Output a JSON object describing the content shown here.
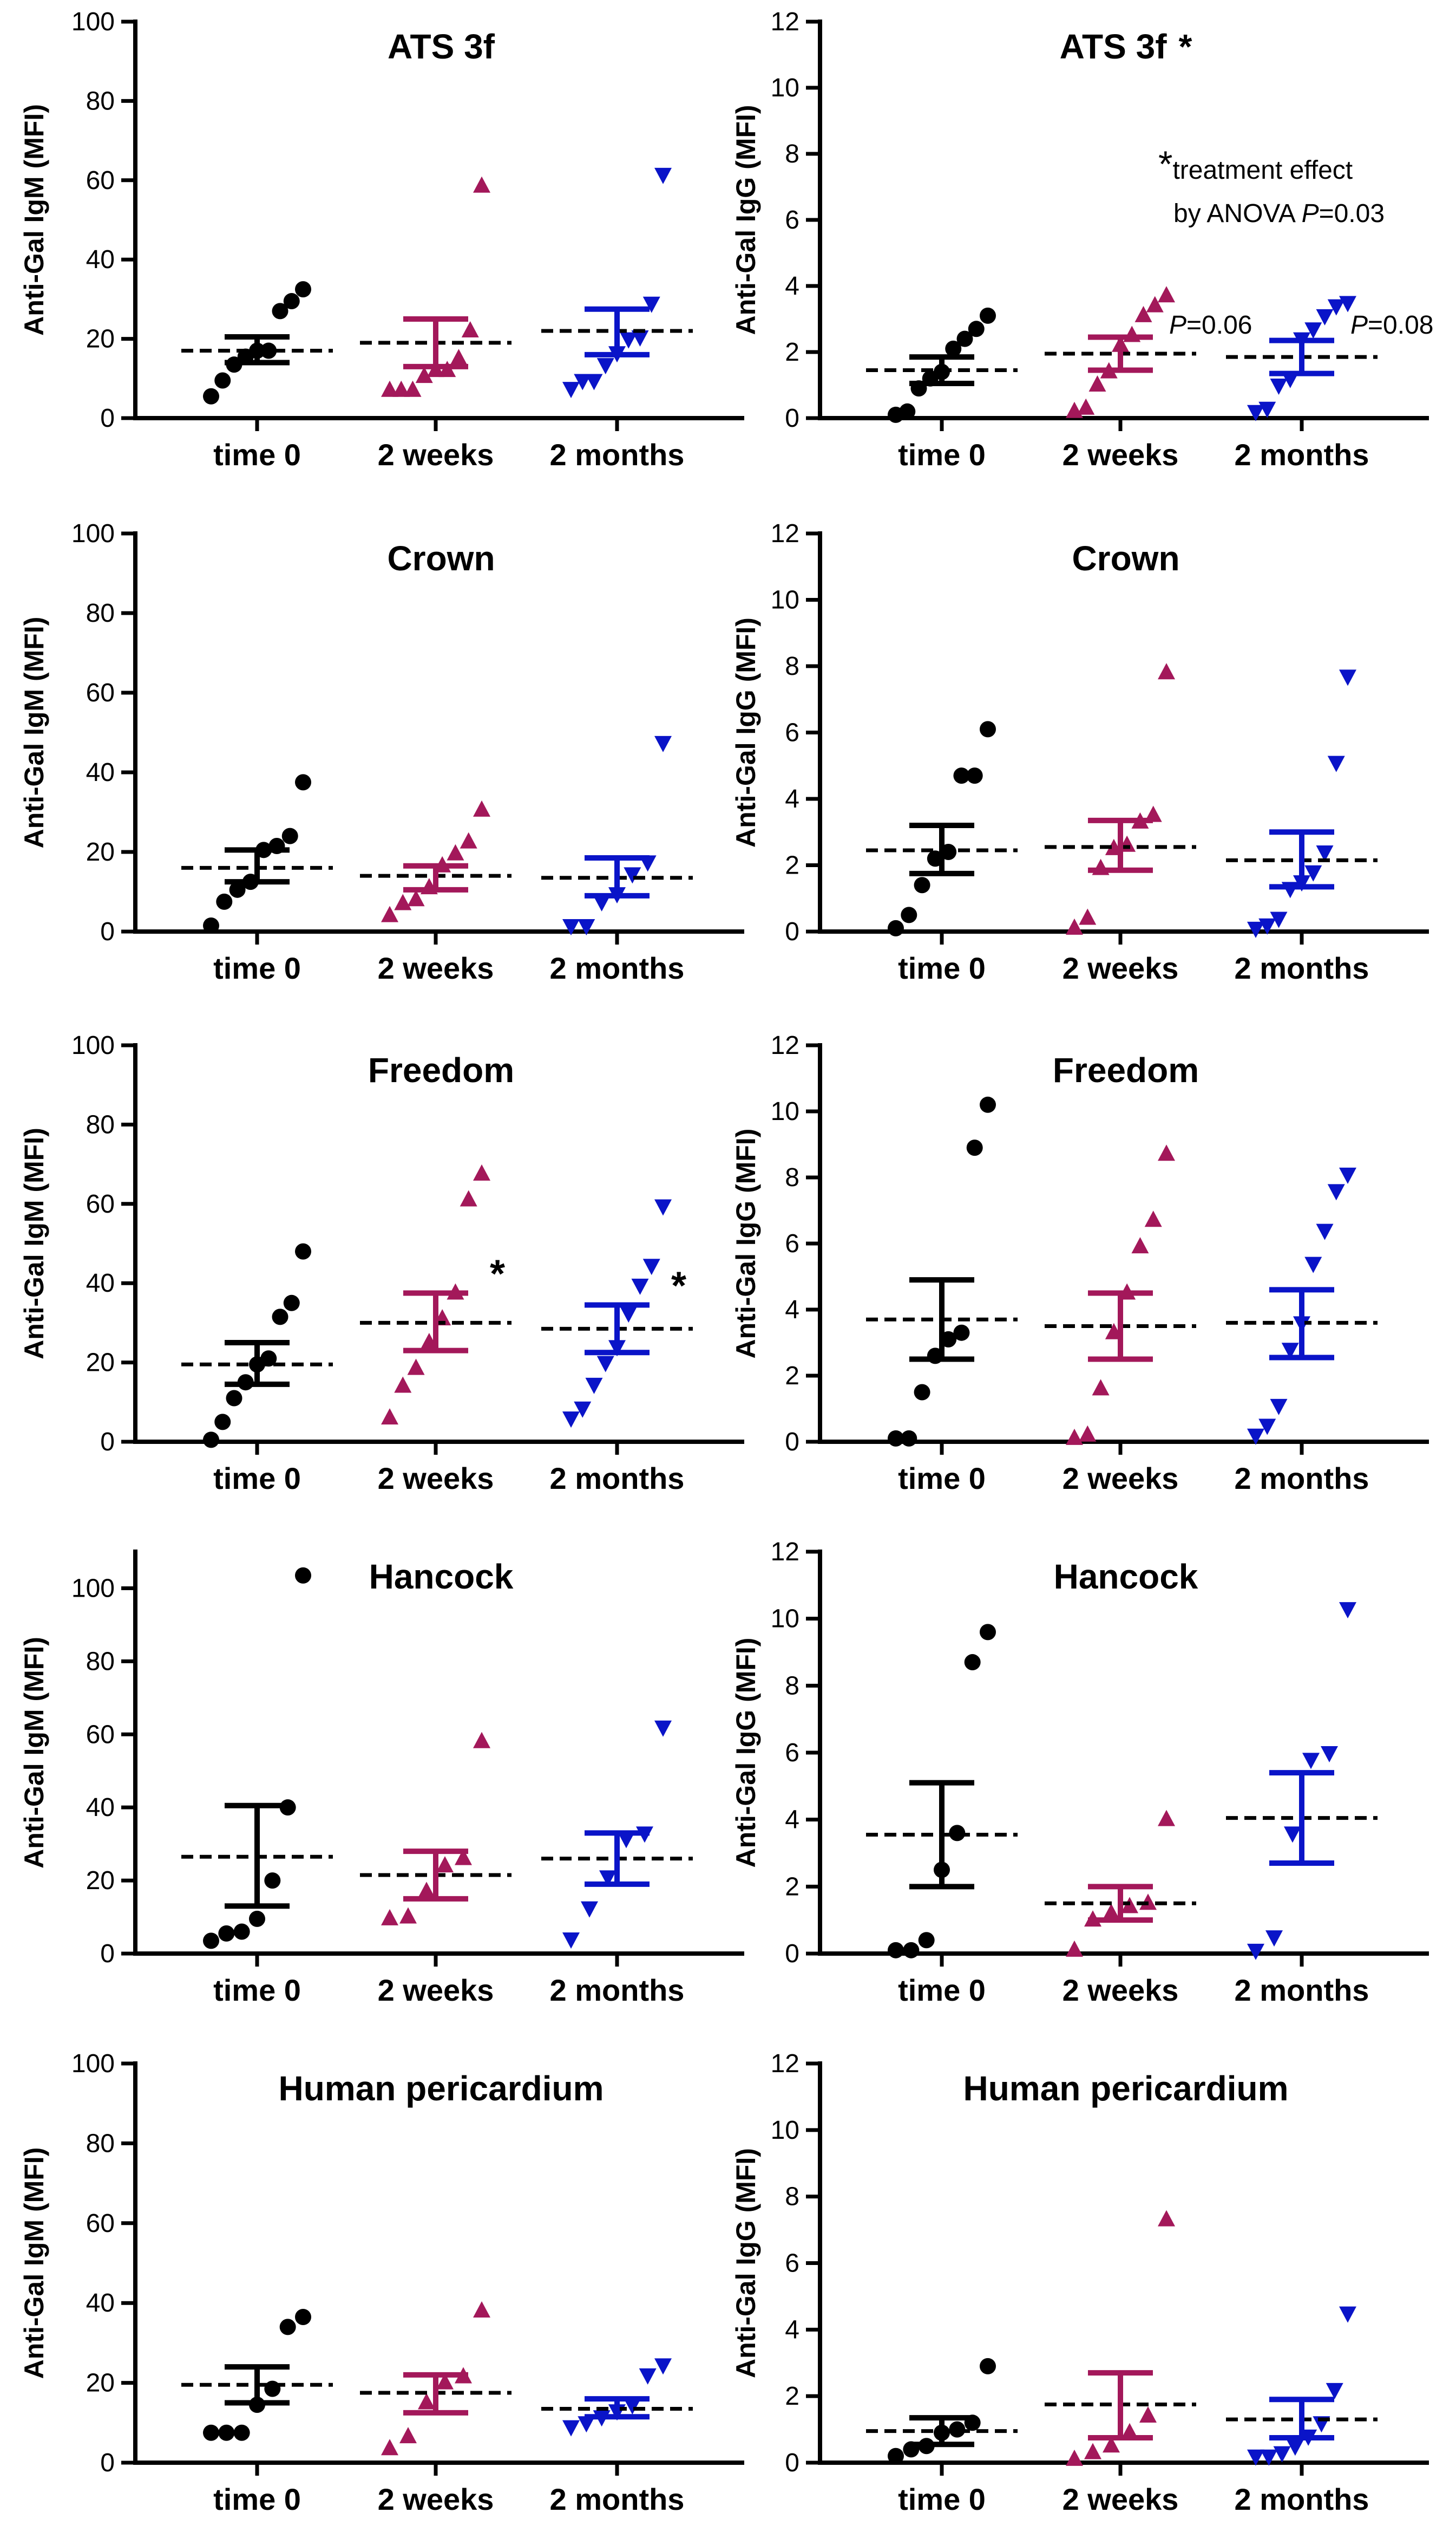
{
  "figure": {
    "rows": 5,
    "columns": 2
  },
  "colors": {
    "time0": "#000000",
    "weeks2": "#a3185a",
    "months2": "#0a14c8",
    "axis": "#000000"
  },
  "chart_data": [
    {
      "type": "scatter",
      "title": "ATS 3f",
      "title_suffix": "",
      "ylabel": "Anti-Gal IgM (MFI)",
      "xlabel": "",
      "ylim": [
        0,
        100
      ],
      "yticks": [
        0,
        20,
        40,
        60,
        80,
        100
      ],
      "categories": [
        "time 0",
        "2 weeks",
        "2 months"
      ],
      "series": [
        {
          "name": "time 0",
          "marker": "circle",
          "values": [
            5.5,
            9.5,
            13.5,
            15.5,
            17,
            17,
            27,
            29.5,
            32.5
          ],
          "mean": 17,
          "sem_low": 14,
          "sem_high": 20.5
        },
        {
          "name": "2 weeks",
          "marker": "triangle-up",
          "values": [
            7,
            7,
            7,
            10.5,
            12,
            12,
            15,
            22,
            58.5
          ],
          "mean": 19,
          "sem_low": 13,
          "sem_high": 25
        },
        {
          "name": "2 months",
          "marker": "triangle-down",
          "values": [
            7.5,
            9.5,
            9.5,
            13.5,
            16.5,
            20,
            20.5,
            29,
            61.5
          ],
          "mean": 22,
          "sem_low": 16,
          "sem_high": 27.5
        }
      ],
      "annotations": []
    },
    {
      "type": "scatter",
      "title": "ATS 3f",
      "title_suffix": "*",
      "ylabel": "Anti-Gal IgG (MFI)",
      "xlabel": "",
      "ylim": [
        0,
        12
      ],
      "yticks": [
        0,
        2,
        4,
        6,
        8,
        10,
        12
      ],
      "categories": [
        "time 0",
        "2 weeks",
        "2 months"
      ],
      "series": [
        {
          "name": "time 0",
          "marker": "circle",
          "values": [
            0.1,
            0.2,
            0.9,
            1.2,
            1.4,
            2.1,
            2.4,
            2.7,
            3.1
          ],
          "mean": 1.45,
          "sem_low": 1.05,
          "sem_high": 1.85
        },
        {
          "name": "2 weeks",
          "marker": "triangle-up",
          "values": [
            0.2,
            0.3,
            1,
            1.4,
            2.2,
            2.5,
            3.1,
            3.4,
            3.7
          ],
          "mean": 1.95,
          "sem_low": 1.45,
          "sem_high": 2.45
        },
        {
          "name": "2 months",
          "marker": "triangle-down",
          "values": [
            0.2,
            0.3,
            1,
            1.2,
            2.4,
            2.7,
            3.1,
            3.4,
            3.5
          ],
          "mean": 1.85,
          "sem_low": 1.35,
          "sem_high": 2.35
        }
      ],
      "annotations": [
        {
          "kind": "note",
          "prefix": "*",
          "line1": "treatment effect",
          "line2": "by ANOVA ",
          "p_label": "P",
          "line2_value": "=0.03"
        },
        {
          "kind": "pvalue",
          "category": "2 weeks",
          "y": 2.85,
          "label": "P",
          "value": "=0.06"
        },
        {
          "kind": "pvalue",
          "category": "2 months",
          "y": 2.85,
          "label": "P",
          "value": "=0.08"
        }
      ]
    },
    {
      "type": "scatter",
      "title": "Crown",
      "title_suffix": "",
      "ylabel": "Anti-Gal IgM (MFI)",
      "xlabel": "",
      "ylim": [
        0,
        100
      ],
      "yticks": [
        0,
        20,
        40,
        60,
        80,
        100
      ],
      "categories": [
        "time 0",
        "2 weeks",
        "2 months"
      ],
      "series": [
        {
          "name": "time 0",
          "marker": "circle",
          "values": [
            1.5,
            7.5,
            10.5,
            12.5,
            20.5,
            21.5,
            24,
            37.5
          ],
          "mean": 16,
          "sem_low": 12.5,
          "sem_high": 20.5
        },
        {
          "name": "2 weeks",
          "marker": "triangle-up",
          "values": [
            4,
            7,
            8,
            11,
            16.5,
            19.5,
            22.5,
            30.5
          ],
          "mean": 14,
          "sem_low": 10.5,
          "sem_high": 16.5
        },
        {
          "name": "2 months",
          "marker": "triangle-down",
          "values": [
            1.5,
            1.5,
            7.5,
            9.5,
            14.5,
            17.5,
            47.5
          ],
          "mean": 13.5,
          "sem_low": 9,
          "sem_high": 18.5
        }
      ],
      "annotations": []
    },
    {
      "type": "scatter",
      "title": "Crown",
      "title_suffix": "",
      "ylabel": "Anti-Gal IgG (MFI)",
      "xlabel": "",
      "ylim": [
        0,
        12
      ],
      "yticks": [
        0,
        2,
        4,
        6,
        8,
        10,
        12
      ],
      "categories": [
        "time 0",
        "2 weeks",
        "2 months"
      ],
      "series": [
        {
          "name": "time 0",
          "marker": "circle",
          "values": [
            0.1,
            0.5,
            1.4,
            2.2,
            2.4,
            4.7,
            4.7,
            6.1
          ],
          "mean": 2.45,
          "sem_low": 1.75,
          "sem_high": 3.2
        },
        {
          "name": "2 weeks",
          "marker": "triangle-up",
          "values": [
            0.1,
            0.4,
            1.9,
            2.5,
            2.6,
            3.3,
            3.5,
            7.8
          ],
          "mean": 2.55,
          "sem_low": 1.85,
          "sem_high": 3.35
        },
        {
          "name": "2 months",
          "marker": "triangle-down",
          "values": [
            0.1,
            0.2,
            0.4,
            1.3,
            1.5,
            1.8,
            2.4,
            5.1,
            7.7
          ],
          "mean": 2.15,
          "sem_low": 1.35,
          "sem_high": 3
        }
      ],
      "annotations": []
    },
    {
      "type": "scatter",
      "title": "Freedom",
      "title_suffix": "",
      "ylabel": "Anti-Gal IgM (MFI)",
      "xlabel": "",
      "ylim": [
        0,
        100
      ],
      "yticks": [
        0,
        20,
        40,
        60,
        80,
        100
      ],
      "categories": [
        "time 0",
        "2 weeks",
        "2 months"
      ],
      "series": [
        {
          "name": "time 0",
          "marker": "circle",
          "values": [
            0.5,
            5,
            11,
            15,
            19.5,
            21,
            31.5,
            35,
            48
          ],
          "mean": 19.5,
          "sem_low": 14.5,
          "sem_high": 25
        },
        {
          "name": "2 weeks",
          "marker": "triangle-up",
          "values": [
            6,
            14,
            18.5,
            25,
            31,
            37.5,
            61,
            67.5
          ],
          "mean": 30,
          "sem_low": 23,
          "sem_high": 37.5
        },
        {
          "name": "2 months",
          "marker": "triangle-down",
          "values": [
            6,
            8.5,
            14.5,
            20,
            24,
            32.5,
            39.5,
            44.5,
            59.5
          ],
          "mean": 28.5,
          "sem_low": 22.5,
          "sem_high": 34.5
        }
      ],
      "annotations": [
        {
          "kind": "star",
          "category": "2 weeks",
          "y": 42,
          "label": "*"
        },
        {
          "kind": "star",
          "category": "2 months",
          "y": 39,
          "label": "*"
        }
      ]
    },
    {
      "type": "scatter",
      "title": "Freedom",
      "title_suffix": "",
      "ylabel": "Anti-Gal IgG (MFI)",
      "xlabel": "",
      "ylim": [
        0,
        12
      ],
      "yticks": [
        0,
        2,
        4,
        6,
        8,
        10,
        12
      ],
      "categories": [
        "time 0",
        "2 weeks",
        "2 months"
      ],
      "series": [
        {
          "name": "time 0",
          "marker": "circle",
          "values": [
            0.1,
            0.1,
            1.5,
            2.6,
            3.1,
            3.3,
            8.9,
            10.2
          ],
          "mean": 3.7,
          "sem_low": 2.5,
          "sem_high": 4.9
        },
        {
          "name": "2 weeks",
          "marker": "triangle-up",
          "values": [
            0.1,
            0.2,
            1.6,
            3.3,
            4.5,
            5.9,
            6.7,
            8.7
          ],
          "mean": 3.5,
          "sem_low": 2.5,
          "sem_high": 4.5
        },
        {
          "name": "2 months",
          "marker": "triangle-down",
          "values": [
            0.2,
            0.5,
            1.1,
            2.8,
            3.6,
            5.4,
            6.4,
            7.6,
            8.1
          ],
          "mean": 3.6,
          "sem_low": 2.55,
          "sem_high": 4.6
        }
      ],
      "annotations": []
    },
    {
      "type": "scatter",
      "title": "Hancock",
      "title_suffix": "",
      "ylabel": "Anti-Gal IgM (MFI)",
      "xlabel": "",
      "ylim": [
        0,
        110
      ],
      "yticks": [
        0,
        20,
        40,
        60,
        80,
        100
      ],
      "categories": [
        "time 0",
        "2 weeks",
        "2 months"
      ],
      "series": [
        {
          "name": "time 0",
          "marker": "circle",
          "values": [
            3.5,
            5.5,
            6,
            9.5,
            20,
            40,
            103.5
          ],
          "mean": 26.5,
          "sem_low": 13,
          "sem_high": 40.5
        },
        {
          "name": "2 weeks",
          "marker": "triangle-up",
          "values": [
            9.5,
            10,
            17,
            24,
            26,
            58
          ],
          "mean": 21.5,
          "sem_low": 15,
          "sem_high": 28
        },
        {
          "name": "2 months",
          "marker": "triangle-down",
          "values": [
            4,
            12.5,
            21,
            31.5,
            33,
            62
          ],
          "mean": 26,
          "sem_low": 19,
          "sem_high": 33
        }
      ],
      "annotations": []
    },
    {
      "type": "scatter",
      "title": "Hancock",
      "title_suffix": "",
      "ylabel": "Anti-Gal IgG (MFI)",
      "xlabel": "",
      "ylim": [
        0,
        12
      ],
      "yticks": [
        0,
        2,
        4,
        6,
        8,
        10,
        12
      ],
      "categories": [
        "time 0",
        "2 weeks",
        "2 months"
      ],
      "series": [
        {
          "name": "time 0",
          "marker": "circle",
          "values": [
            0.1,
            0.1,
            0.4,
            2.5,
            3.6,
            8.7,
            9.6
          ],
          "mean": 3.55,
          "sem_low": 2,
          "sem_high": 5.1
        },
        {
          "name": "2 weeks",
          "marker": "triangle-up",
          "values": [
            0.1,
            1,
            1.2,
            1.4,
            1.5,
            4
          ],
          "mean": 1.5,
          "sem_low": 1,
          "sem_high": 2
        },
        {
          "name": "2 months",
          "marker": "triangle-down",
          "values": [
            0.1,
            0.5,
            3.6,
            5.8,
            6,
            10.3
          ],
          "mean": 4.05,
          "sem_low": 2.7,
          "sem_high": 5.4
        }
      ],
      "annotations": []
    },
    {
      "type": "scatter",
      "title": "Human pericardium",
      "title_suffix": "",
      "ylabel": "Anti-Gal IgM (MFI)",
      "xlabel": "",
      "ylim": [
        0,
        100
      ],
      "yticks": [
        0,
        20,
        40,
        60,
        80,
        100
      ],
      "categories": [
        "time 0",
        "2 weeks",
        "2 months"
      ],
      "series": [
        {
          "name": "time 0",
          "marker": "circle",
          "values": [
            7.5,
            7.5,
            7.5,
            14.5,
            18.5,
            34,
            36.5
          ],
          "mean": 19.5,
          "sem_low": 15,
          "sem_high": 24
        },
        {
          "name": "2 weeks",
          "marker": "triangle-up",
          "values": [
            3.5,
            6.5,
            15,
            20,
            21.5,
            38
          ],
          "mean": 17.5,
          "sem_low": 12.5,
          "sem_high": 22
        },
        {
          "name": "2 months",
          "marker": "triangle-down",
          "values": [
            9,
            10,
            11.5,
            13,
            14.5,
            22,
            24.5
          ],
          "mean": 13.5,
          "sem_low": 11.5,
          "sem_high": 16
        }
      ],
      "annotations": []
    },
    {
      "type": "scatter",
      "title": "Human pericardium",
      "title_suffix": "",
      "ylabel": "Anti-Gal IgG (MFI)",
      "xlabel": "",
      "ylim": [
        0,
        12
      ],
      "yticks": [
        0,
        2,
        4,
        6,
        8,
        10,
        12
      ],
      "categories": [
        "time 0",
        "2 weeks",
        "2 months"
      ],
      "series": [
        {
          "name": "time 0",
          "marker": "circle",
          "values": [
            0.2,
            0.4,
            0.5,
            0.9,
            1,
            1.2,
            2.9
          ],
          "mean": 0.95,
          "sem_low": 0.55,
          "sem_high": 1.35
        },
        {
          "name": "2 weeks",
          "marker": "triangle-up",
          "values": [
            0.1,
            0.3,
            0.5,
            0.9,
            1.4,
            7.3
          ],
          "mean": 1.75,
          "sem_low": 0.75,
          "sem_high": 2.7
        },
        {
          "name": "2 months",
          "marker": "triangle-down",
          "values": [
            0.2,
            0.2,
            0.3,
            0.5,
            0.8,
            1.2,
            2.2,
            4.5
          ],
          "mean": 1.3,
          "sem_low": 0.75,
          "sem_high": 1.9
        }
      ],
      "annotations": []
    }
  ]
}
